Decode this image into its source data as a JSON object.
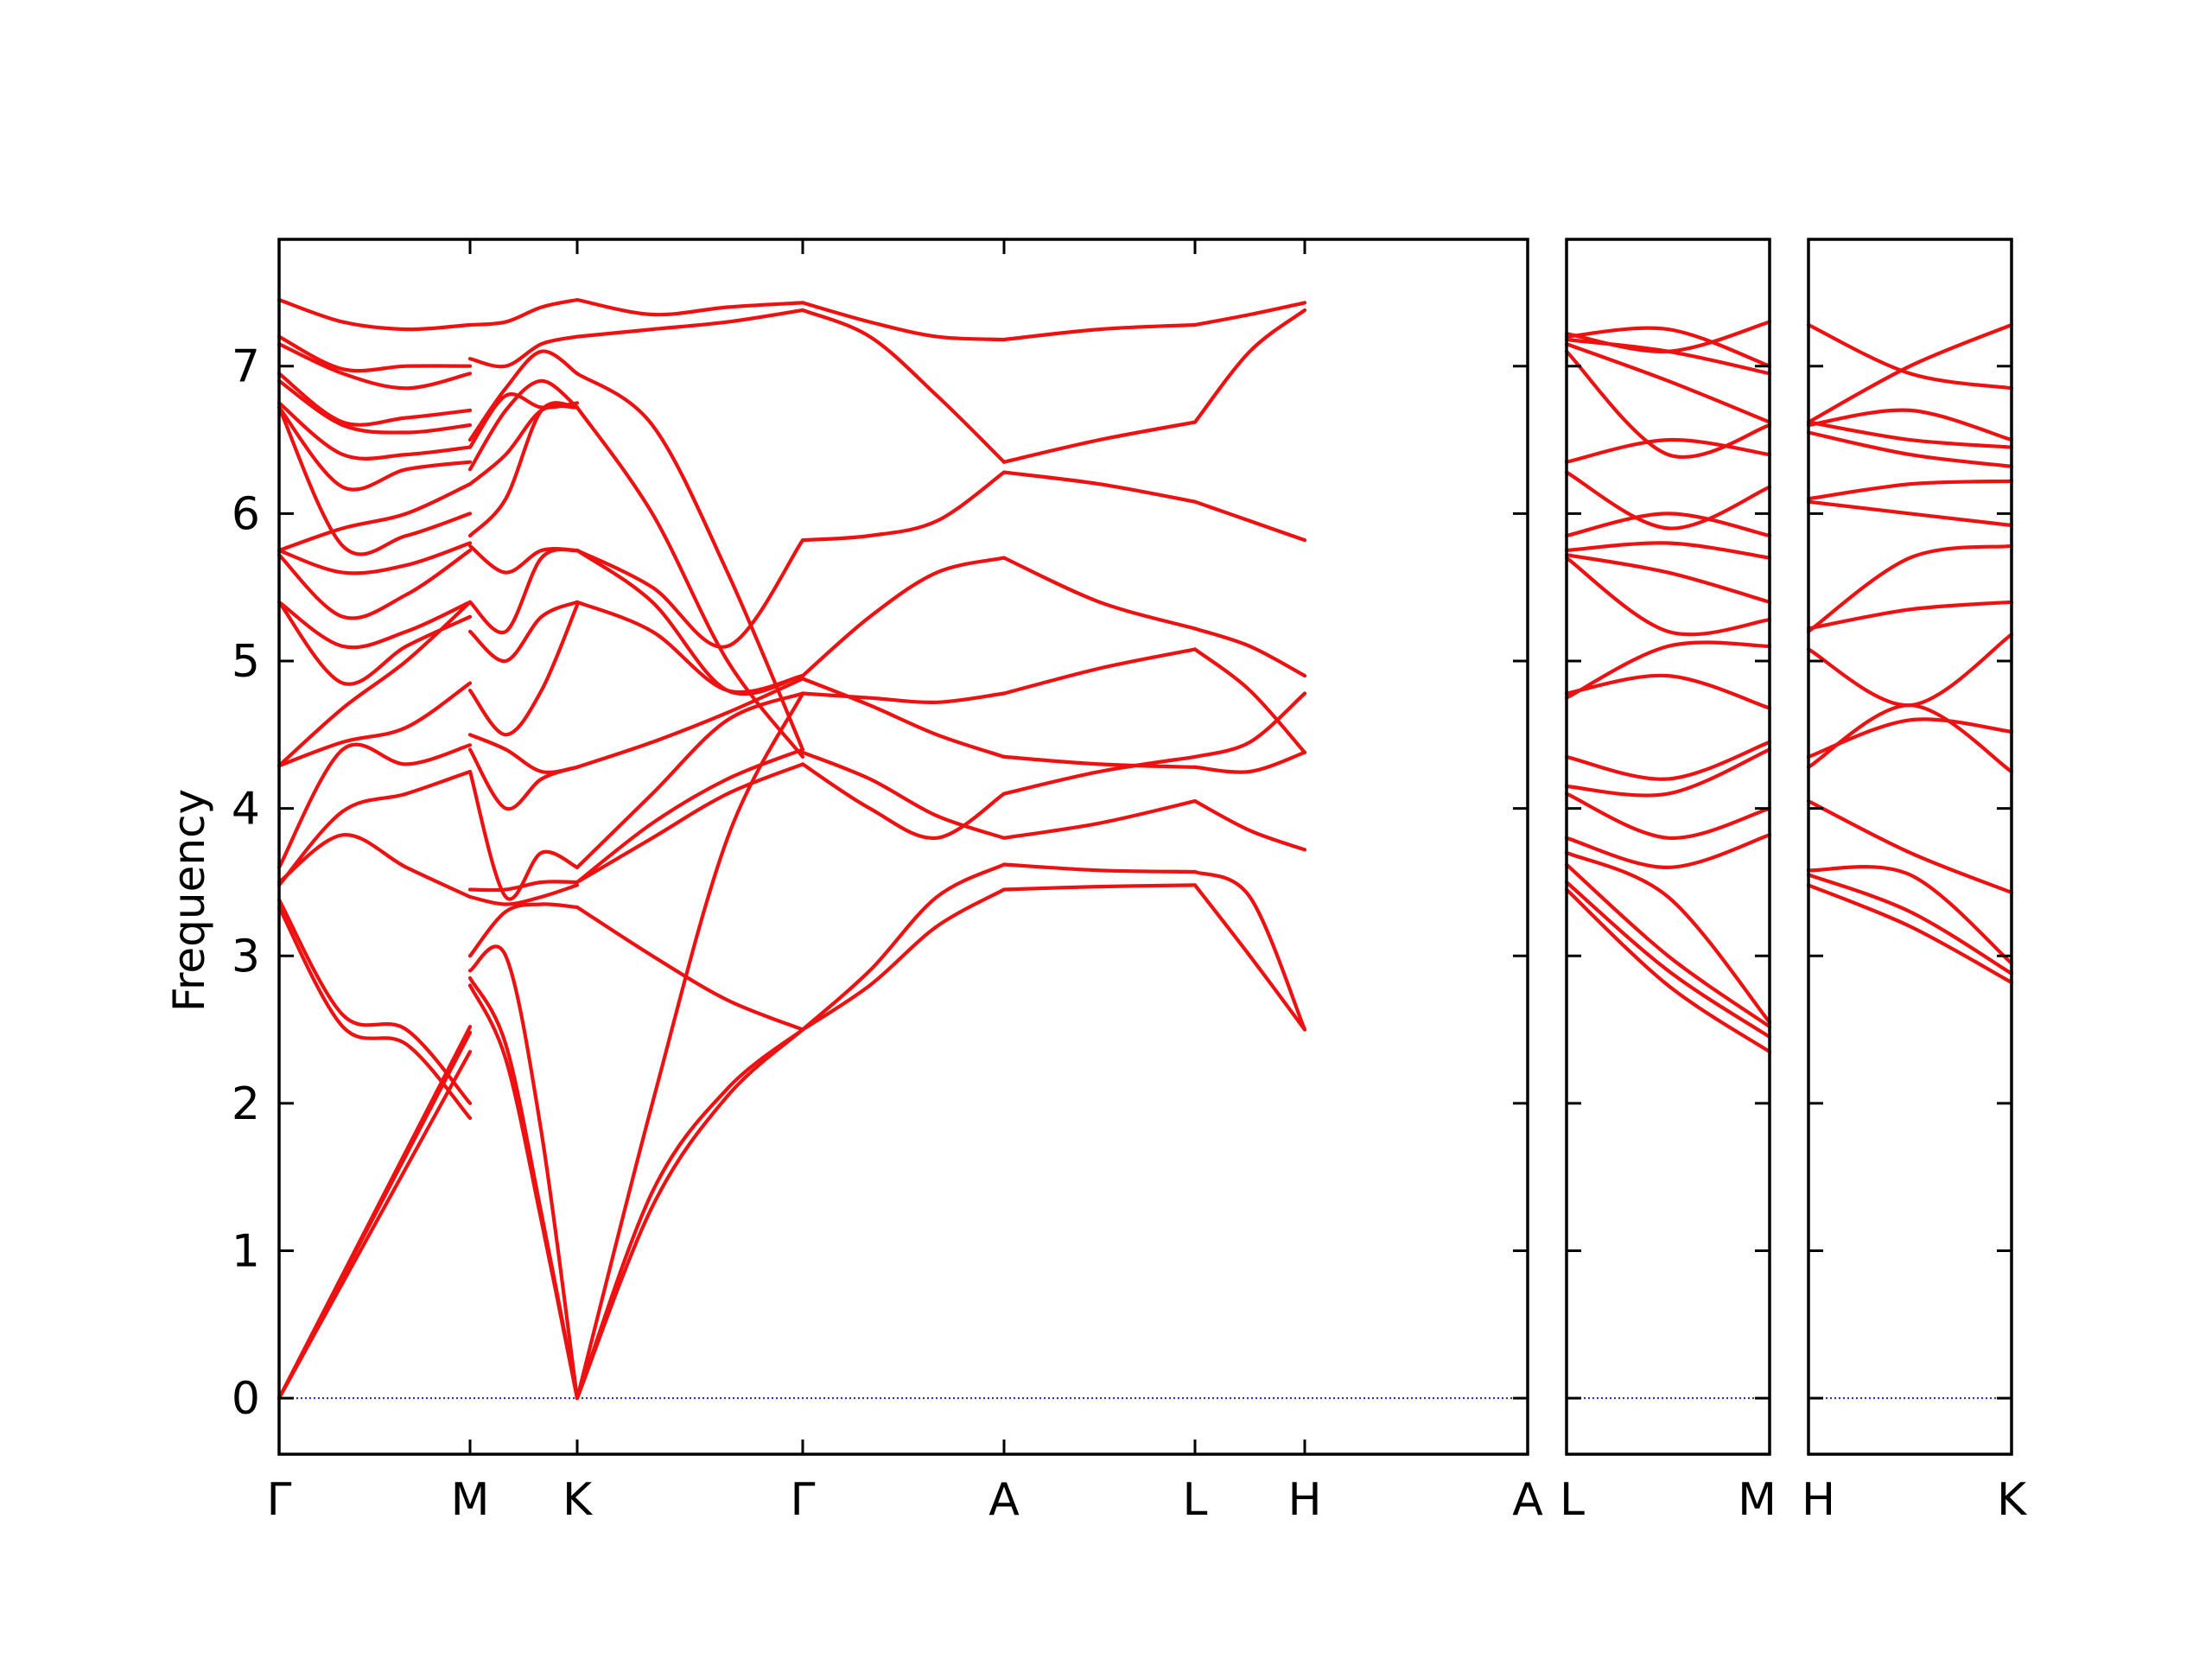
{
  "chart_data": {
    "type": "line",
    "ylabel": "Frequency",
    "ylim": [
      -0.38,
      7.86
    ],
    "yticks": [
      "0",
      "1",
      "2",
      "3",
      "4",
      "5",
      "6",
      "7"
    ],
    "colors": {
      "bands": "#ee1111",
      "zero_line": "#2222cc",
      "frame": "#000000"
    },
    "panels": [
      {
        "xticks": [
          "Γ",
          "M",
          "K",
          "Γ",
          "A",
          "L",
          "H",
          "A"
        ],
        "segments": [
          {
            "bands": [
              [
                0.0,
                2.35
              ],
              [
                0.0,
                2.48
              ],
              [
                0.0,
                2.52
              ],
              [
                3.33,
                2.52,
                2.4,
                1.9
              ],
              [
                3.38,
                2.6,
                2.5,
                2.0
              ],
              [
                3.5,
                3.82,
                3.6,
                3.4
              ],
              [
                3.48,
                3.98,
                4.1,
                4.25
              ],
              [
                3.6,
                4.4,
                4.3,
                4.43
              ],
              [
                4.29,
                4.45,
                4.55,
                4.85
              ],
              [
                4.29,
                4.68,
                5.0,
                5.4
              ],
              [
                5.4,
                4.85,
                5.1,
                5.3
              ],
              [
                5.4,
                5.1,
                5.2,
                5.4
              ],
              [
                5.72,
                5.3,
                5.45,
                5.75
              ],
              [
                5.75,
                5.6,
                5.65,
                5.8
              ],
              [
                5.75,
                5.9,
                6.0,
                6.2
              ],
              [
                6.72,
                5.78,
                5.85,
                6.0
              ],
              [
                6.72,
                6.18,
                6.3,
                6.35
              ],
              [
                6.75,
                6.4,
                6.4,
                6.45
              ],
              [
                6.9,
                6.6,
                6.55,
                6.6
              ],
              [
                6.95,
                6.62,
                6.65,
                6.7
              ],
              [
                7.15,
                6.95,
                6.85,
                6.95
              ],
              [
                7.2,
                6.98,
                7.0,
                7.0
              ],
              [
                7.45,
                7.3,
                7.25,
                7.28
              ]
            ]
          },
          {
            "bands": [
              [
                2.8,
                2.3,
                1.2,
                0.0
              ],
              [
                2.85,
                2.4,
                1.25,
                0.0
              ],
              [
                2.9,
                3.0,
                1.8,
                0.0
              ],
              [
                3.0,
                3.3,
                3.35,
                3.33
              ],
              [
                3.4,
                3.35,
                3.4,
                3.48
              ],
              [
                3.45,
                3.45,
                3.5,
                3.5
              ],
              [
                4.25,
                3.4,
                3.7,
                3.6
              ],
              [
                4.4,
                4.0,
                4.2,
                4.28
              ],
              [
                4.5,
                4.4,
                4.25,
                4.28
              ],
              [
                4.8,
                4.5,
                4.8,
                5.38
              ],
              [
                5.2,
                5.0,
                5.3,
                5.4
              ],
              [
                5.4,
                5.2,
                5.7,
                5.75
              ],
              [
                5.78,
                5.6,
                5.75,
                5.75
              ],
              [
                5.85,
                6.1,
                6.7,
                6.72
              ],
              [
                6.2,
                6.4,
                6.7,
                6.72
              ],
              [
                6.3,
                6.7,
                6.9,
                6.72
              ],
              [
                6.45,
                6.8,
                6.72,
                6.75
              ],
              [
                6.5,
                6.85,
                7.1,
                6.95
              ],
              [
                7.05,
                7.0,
                7.15,
                7.2
              ],
              [
                7.28,
                7.3,
                7.4,
                7.45
              ]
            ]
          },
          {
            "bands": [
              [
                0.0,
                1.3,
                2.05,
                2.5
              ],
              [
                0.0,
                1.4,
                2.1,
                2.5
              ],
              [
                0.0,
                2.0,
                3.8,
                4.78
              ],
              [
                3.33,
                3.0,
                2.7,
                2.5
              ],
              [
                3.5,
                3.8,
                4.1,
                4.3
              ],
              [
                3.5,
                3.9,
                4.2,
                4.4
              ],
              [
                3.6,
                4.1,
                4.6,
                4.78
              ],
              [
                4.28,
                4.45,
                4.65,
                4.88
              ],
              [
                5.4,
                5.2,
                4.8,
                4.9
              ],
              [
                5.75,
                5.4,
                4.8,
                4.9
              ],
              [
                5.75,
                5.5,
                5.1,
                5.82
              ],
              [
                6.72,
                6.0,
                5.0,
                4.35
              ],
              [
                6.95,
                6.6,
                5.6,
                4.4
              ],
              [
                7.2,
                7.25,
                7.3,
                7.38
              ],
              [
                7.45,
                7.35,
                7.4,
                7.43
              ]
            ]
          },
          {
            "bands": [
              [
                2.5,
                2.8,
                3.2,
                3.45
              ],
              [
                2.5,
                2.9,
                3.4,
                3.62
              ],
              [
                4.3,
                4.0,
                3.8,
                4.1
              ],
              [
                4.38,
                4.2,
                3.95,
                3.8
              ],
              [
                4.78,
                4.75,
                4.72,
                4.78
              ],
              [
                4.88,
                4.7,
                4.5,
                4.35
              ],
              [
                4.9,
                5.3,
                5.6,
                5.7
              ],
              [
                5.82,
                5.85,
                5.95,
                6.28
              ],
              [
                7.38,
                7.2,
                6.8,
                6.35
              ],
              [
                7.43,
                7.3,
                7.2,
                7.18
              ]
            ]
          },
          {
            "bands": [
              [
                3.45,
                3.47,
                3.48
              ],
              [
                3.62,
                3.58,
                3.57
              ],
              [
                3.8,
                3.9,
                4.05
              ],
              [
                4.1,
                4.25,
                4.35
              ],
              [
                4.35,
                4.3,
                4.28
              ],
              [
                4.78,
                4.95,
                5.08
              ],
              [
                5.7,
                5.4,
                5.22
              ],
              [
                6.28,
                6.2,
                6.08
              ],
              [
                6.35,
                6.5,
                6.62
              ],
              [
                7.18,
                7.25,
                7.28
              ]
            ]
          },
          {
            "bands": [
              [
                3.48,
                3.0,
                2.5
              ],
              [
                3.57,
                3.4,
                2.5
              ],
              [
                4.05,
                3.85,
                3.72
              ],
              [
                4.28,
                4.25,
                4.38
              ],
              [
                4.35,
                4.45,
                4.78
              ],
              [
                5.08,
                4.8,
                4.38
              ],
              [
                5.22,
                5.1,
                4.9
              ],
              [
                6.08,
                5.95,
                5.82
              ],
              [
                6.62,
                7.1,
                7.38
              ],
              [
                7.28,
                7.35,
                7.43
              ]
            ]
          }
        ]
      },
      {
        "xticks": [
          "L",
          "M"
        ],
        "segments": [
          {
            "bands": [
              [
                3.45,
                2.8,
                2.35
              ],
              [
                3.5,
                2.9,
                2.45
              ],
              [
                3.62,
                3.0,
                2.52
              ],
              [
                3.7,
                3.4,
                2.55
              ],
              [
                3.8,
                3.6,
                3.82
              ],
              [
                4.1,
                3.8,
                4.0
              ],
              [
                4.15,
                4.1,
                4.4
              ],
              [
                4.35,
                4.2,
                4.45
              ],
              [
                4.78,
                4.9,
                4.68
              ],
              [
                4.75,
                5.1,
                5.1
              ],
              [
                5.7,
                5.2,
                5.28
              ],
              [
                5.72,
                5.6,
                5.4
              ],
              [
                5.75,
                5.8,
                5.7
              ],
              [
                5.85,
                6.0,
                5.85
              ],
              [
                6.28,
                5.9,
                6.18
              ],
              [
                6.35,
                6.5,
                6.4
              ],
              [
                7.1,
                6.4,
                6.6
              ],
              [
                7.15,
                6.9,
                6.62
              ],
              [
                7.18,
                7.1,
                6.95
              ],
              [
                7.2,
                7.25,
                7.0
              ],
              [
                7.22,
                7.1,
                7.3
              ]
            ]
          }
        ]
      },
      {
        "xticks": [
          "H",
          "K"
        ],
        "segments": [
          {
            "bands": [
              [
                3.48,
                3.2,
                2.82
              ],
              [
                3.55,
                3.3,
                2.88
              ],
              [
                3.58,
                3.55,
                2.95
              ],
              [
                4.05,
                3.7,
                3.43
              ],
              [
                4.28,
                4.7,
                4.25
              ],
              [
                4.35,
                4.6,
                4.52
              ],
              [
                5.08,
                4.7,
                5.18
              ],
              [
                5.22,
                5.35,
                5.4
              ],
              [
                5.2,
                5.7,
                5.78
              ],
              [
                6.08,
                6.0,
                5.92
              ],
              [
                6.1,
                6.2,
                6.22
              ],
              [
                6.55,
                6.4,
                6.32
              ],
              [
                6.62,
                6.5,
                6.45
              ],
              [
                6.6,
                6.7,
                6.5
              ],
              [
                7.28,
                6.95,
                6.85
              ],
              [
                6.62,
                7.0,
                7.28
              ]
            ]
          }
        ]
      }
    ]
  }
}
